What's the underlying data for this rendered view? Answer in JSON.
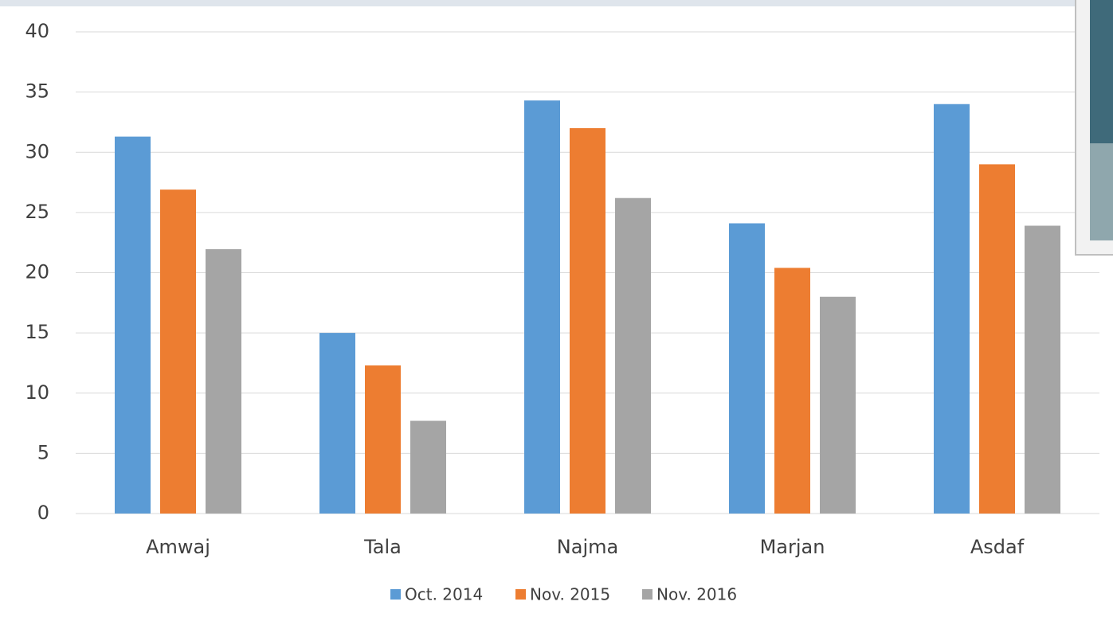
{
  "chart_data": {
    "type": "bar",
    "categories": [
      "Amwaj",
      "Tala",
      "Najma",
      "Marjan",
      "Asdaf"
    ],
    "series": [
      {
        "name": "Oct. 2014",
        "color": "#5b9bd5",
        "values": [
          31.3,
          15.0,
          34.3,
          24.1,
          34.0
        ]
      },
      {
        "name": "Nov. 2015",
        "color": "#ed7d31",
        "values": [
          26.9,
          12.3,
          32.0,
          20.4,
          29.0
        ]
      },
      {
        "name": "Nov. 2016",
        "color": "#a5a5a5",
        "values": [
          21.95,
          7.7,
          26.2,
          18.0,
          23.9
        ]
      }
    ],
    "ylim": [
      0,
      40
    ],
    "yticks": [
      0,
      5,
      10,
      15,
      20,
      25,
      30,
      35,
      40
    ],
    "grid": true,
    "legend": "bottom"
  }
}
